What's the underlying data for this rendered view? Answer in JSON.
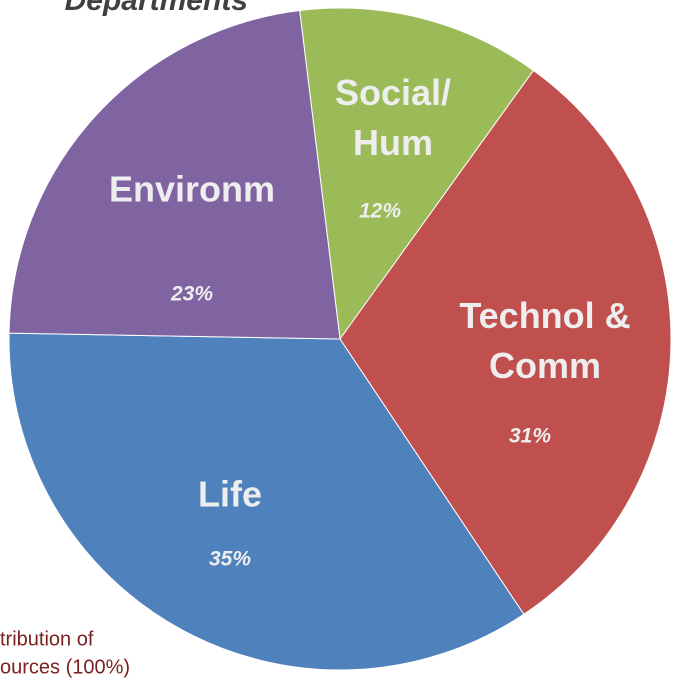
{
  "chart_data": {
    "type": "pie",
    "title": "Departments",
    "categories": [
      "Social/\nHum",
      "Technol &\nComm",
      "Life",
      "Environm"
    ],
    "values": [
      12,
      31,
      35,
      23
    ],
    "value_labels": [
      "12%",
      "31%",
      "35%",
      "23%"
    ],
    "colors": [
      "#9bbb59",
      "#c0504d",
      "#4f81bd",
      "#8064a2"
    ],
    "note": [
      "tribution of",
      "ources (100%)"
    ]
  }
}
